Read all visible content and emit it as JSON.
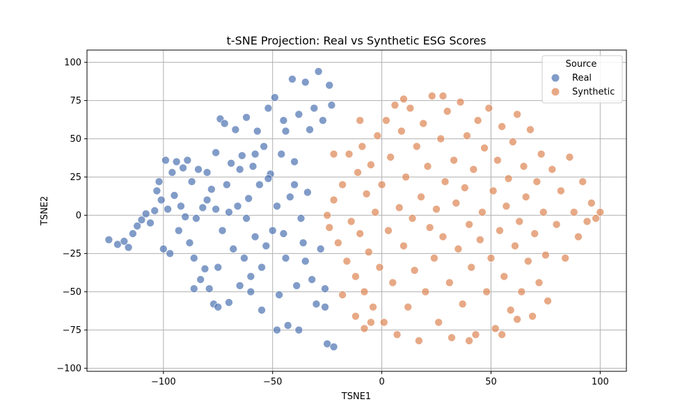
{
  "chart_data": {
    "type": "scatter",
    "title": "t-SNE Projection: Real vs Synthetic ESG Scores",
    "xlabel": "TSNE1",
    "ylabel": "TSNE2",
    "xlim": [
      -135,
      112
    ],
    "ylim": [
      -102,
      108
    ],
    "xticks": [
      -100,
      -50,
      0,
      50,
      100
    ],
    "yticks": [
      -100,
      -75,
      -50,
      -25,
      0,
      25,
      50,
      75,
      100
    ],
    "grid": true,
    "legend": {
      "title": "Source",
      "position": "top-right"
    },
    "series": [
      {
        "name": "Real",
        "color": "#4c72b0",
        "points": [
          [
            -125,
            -16
          ],
          [
            -121,
            -19
          ],
          [
            -118,
            -17
          ],
          [
            -116,
            -21
          ],
          [
            -114,
            -12
          ],
          [
            -112,
            -7
          ],
          [
            -110,
            -3
          ],
          [
            -108,
            1
          ],
          [
            -106,
            -5
          ],
          [
            -104,
            3
          ],
          [
            -103,
            16
          ],
          [
            -102,
            22
          ],
          [
            -101,
            10
          ],
          [
            -100,
            -22
          ],
          [
            -99,
            36
          ],
          [
            -98,
            4
          ],
          [
            -97,
            -25
          ],
          [
            -96,
            28
          ],
          [
            -95,
            13
          ],
          [
            -94,
            35
          ],
          [
            -93,
            -10
          ],
          [
            -92,
            6
          ],
          [
            -91,
            31
          ],
          [
            -90,
            -1
          ],
          [
            -89,
            36
          ],
          [
            -88,
            -18
          ],
          [
            -87,
            22
          ],
          [
            -86,
            -28
          ],
          [
            -85,
            -2
          ],
          [
            -84,
            30
          ],
          [
            -83,
            -42
          ],
          [
            -82,
            5
          ],
          [
            -81,
            -35
          ],
          [
            -80,
            28
          ],
          [
            -79,
            -48
          ],
          [
            -78,
            17
          ],
          [
            -77,
            -58
          ],
          [
            -76,
            41
          ],
          [
            -76,
            4
          ],
          [
            -75,
            -34
          ],
          [
            -74,
            63
          ],
          [
            -73,
            -10
          ],
          [
            -72,
            60
          ],
          [
            -71,
            20
          ],
          [
            -70,
            -57
          ],
          [
            -69,
            34
          ],
          [
            -68,
            -22
          ],
          [
            -67,
            56
          ],
          [
            -66,
            6
          ],
          [
            -65,
            -46
          ],
          [
            -64,
            39
          ],
          [
            -63,
            -28
          ],
          [
            -62,
            64
          ],
          [
            -61,
            11
          ],
          [
            -60,
            -40
          ],
          [
            -59,
            32
          ],
          [
            -58,
            -14
          ],
          [
            -57,
            55
          ],
          [
            -56,
            20
          ],
          [
            -55,
            -34
          ],
          [
            -54,
            45
          ],
          [
            -53,
            -20
          ],
          [
            -52,
            70
          ],
          [
            -51,
            27
          ],
          [
            -50,
            -10
          ],
          [
            -49,
            77
          ],
          [
            -48,
            6
          ],
          [
            -47,
            -52
          ],
          [
            -46,
            40
          ],
          [
            -45,
            62
          ],
          [
            -44,
            -28
          ],
          [
            -43,
            -72
          ],
          [
            -42,
            12
          ],
          [
            -41,
            89
          ],
          [
            -40,
            35
          ],
          [
            -39,
            -46
          ],
          [
            -38,
            66
          ],
          [
            -37,
            -2
          ],
          [
            -36,
            -18
          ],
          [
            -35,
            87
          ],
          [
            -34,
            15
          ],
          [
            -33,
            56
          ],
          [
            -32,
            -42
          ],
          [
            -31,
            70
          ],
          [
            -30,
            -58
          ],
          [
            -29,
            94
          ],
          [
            -28,
            -22
          ],
          [
            -27,
            62
          ],
          [
            -26,
            -48
          ],
          [
            -25,
            -84
          ],
          [
            -24,
            85
          ],
          [
            -23,
            72
          ],
          [
            -22,
            -86
          ],
          [
            -75,
            -60
          ],
          [
            -80,
            10
          ],
          [
            -86,
            -48
          ],
          [
            -62,
            -2
          ],
          [
            -58,
            40
          ],
          [
            -52,
            24
          ],
          [
            -45,
            -12
          ],
          [
            -40,
            20
          ],
          [
            -35,
            -30
          ],
          [
            -70,
            2
          ],
          [
            -65,
            30
          ],
          [
            -55,
            -62
          ],
          [
            -48,
            -75
          ],
          [
            -38,
            -75
          ],
          [
            -26,
            -60
          ],
          [
            -60,
            -50
          ],
          [
            -44,
            55
          ]
        ]
      },
      {
        "name": "Synthetic",
        "color": "#dd8452",
        "points": [
          [
            -25,
            0
          ],
          [
            -24,
            -8
          ],
          [
            -22,
            10
          ],
          [
            -20,
            -18
          ],
          [
            -18,
            20
          ],
          [
            -16,
            -30
          ],
          [
            -15,
            40
          ],
          [
            -14,
            -4
          ],
          [
            -12,
            -40
          ],
          [
            -11,
            28
          ],
          [
            -10,
            -12
          ],
          [
            -9,
            45
          ],
          [
            -8,
            -50
          ],
          [
            -7,
            14
          ],
          [
            -6,
            -24
          ],
          [
            -5,
            33
          ],
          [
            -4,
            -60
          ],
          [
            -3,
            2
          ],
          [
            -2,
            52
          ],
          [
            -1,
            -34
          ],
          [
            0,
            20
          ],
          [
            1,
            -70
          ],
          [
            2,
            62
          ],
          [
            3,
            -10
          ],
          [
            4,
            38
          ],
          [
            5,
            -44
          ],
          [
            6,
            72
          ],
          [
            7,
            -78
          ],
          [
            8,
            5
          ],
          [
            9,
            55
          ],
          [
            10,
            -20
          ],
          [
            11,
            25
          ],
          [
            12,
            -60
          ],
          [
            13,
            70
          ],
          [
            14,
            -2
          ],
          [
            15,
            -36
          ],
          [
            16,
            45
          ],
          [
            17,
            -82
          ],
          [
            18,
            12
          ],
          [
            19,
            60
          ],
          [
            20,
            -50
          ],
          [
            21,
            32
          ],
          [
            22,
            -8
          ],
          [
            23,
            78
          ],
          [
            24,
            -28
          ],
          [
            25,
            4
          ],
          [
            26,
            -70
          ],
          [
            27,
            50
          ],
          [
            28,
            -14
          ],
          [
            29,
            22
          ],
          [
            30,
            68
          ],
          [
            31,
            -44
          ],
          [
            32,
            -80
          ],
          [
            33,
            36
          ],
          [
            34,
            8
          ],
          [
            35,
            -22
          ],
          [
            36,
            74
          ],
          [
            37,
            -58
          ],
          [
            38,
            18
          ],
          [
            39,
            52
          ],
          [
            40,
            -6
          ],
          [
            41,
            -34
          ],
          [
            42,
            30
          ],
          [
            43,
            -78
          ],
          [
            44,
            62
          ],
          [
            45,
            -16
          ],
          [
            46,
            2
          ],
          [
            47,
            44
          ],
          [
            48,
            -50
          ],
          [
            49,
            70
          ],
          [
            50,
            -28
          ],
          [
            51,
            16
          ],
          [
            52,
            -74
          ],
          [
            53,
            36
          ],
          [
            54,
            -10
          ],
          [
            55,
            58
          ],
          [
            56,
            -40
          ],
          [
            57,
            6
          ],
          [
            58,
            24
          ],
          [
            59,
            -62
          ],
          [
            60,
            48
          ],
          [
            61,
            -20
          ],
          [
            62,
            66
          ],
          [
            63,
            -4
          ],
          [
            64,
            -50
          ],
          [
            65,
            32
          ],
          [
            66,
            12
          ],
          [
            67,
            -30
          ],
          [
            68,
            56
          ],
          [
            69,
            -66
          ],
          [
            70,
            -12
          ],
          [
            71,
            22
          ],
          [
            72,
            -44
          ],
          [
            73,
            40
          ],
          [
            74,
            2
          ],
          [
            75,
            -26
          ],
          [
            76,
            -56
          ],
          [
            78,
            30
          ],
          [
            80,
            -6
          ],
          [
            82,
            16
          ],
          [
            84,
            -28
          ],
          [
            86,
            38
          ],
          [
            88,
            2
          ],
          [
            90,
            -14
          ],
          [
            92,
            22
          ],
          [
            94,
            -4
          ],
          [
            96,
            8
          ],
          [
            98,
            -2
          ],
          [
            100,
            2
          ],
          [
            -12,
            -66
          ],
          [
            -8,
            -74
          ],
          [
            -5,
            -70
          ],
          [
            -18,
            -52
          ],
          [
            -22,
            40
          ],
          [
            -10,
            62
          ],
          [
            40,
            -82
          ],
          [
            28,
            78
          ],
          [
            10,
            76
          ],
          [
            55,
            -78
          ],
          [
            62,
            -68
          ]
        ]
      }
    ]
  }
}
